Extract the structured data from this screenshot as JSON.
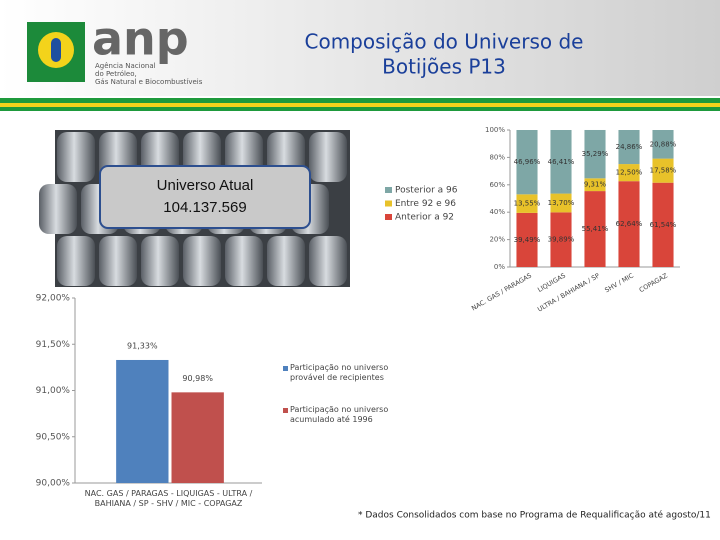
{
  "header": {
    "logo": "anp",
    "logo_subtitle": [
      "Agência Nacional",
      "do Petróleo,",
      "Gás Natural e Biocombustíveis"
    ],
    "title": [
      "Composição do Universo de",
      "Botijões P13"
    ]
  },
  "callout": [
    "Universo Atual",
    "104.137.569"
  ],
  "footnote": "* Dados Consolidados com base no Programa de Requalificação até agosto/11",
  "chart_data": [
    {
      "type": "bar",
      "stacked": true,
      "categories": [
        "NAC. GAS / PARAGAS",
        "LIQUIGAS",
        "ULTRA / BAHIANA / SP",
        "SHV / MIC",
        "COPAGAZ"
      ],
      "series": [
        {
          "name": "Anterior a 92",
          "color": "#d9453a",
          "values": [
            39.49,
            39.89,
            55.41,
            62.64,
            61.54
          ],
          "value_labels": [
            "39,49%",
            "39,89%",
            "55,41%",
            "62,64%",
            "61,54%"
          ]
        },
        {
          "name": "Entre 92 e 96",
          "color": "#e8c22a",
          "values": [
            13.55,
            13.7,
            9.31,
            12.5,
            17.58
          ],
          "value_labels": [
            "13,55%",
            "13,70%",
            "9,31%",
            "12,50%",
            "17,58%"
          ]
        },
        {
          "name": "Posterior a 96",
          "color": "#7ea7a6",
          "values": [
            46.96,
            46.41,
            35.29,
            24.86,
            20.88
          ],
          "value_labels": [
            "46,96%",
            "46,41%",
            "35,29%",
            "24,86%",
            "20,88%"
          ]
        }
      ],
      "ylim": [
        0,
        100
      ],
      "yticks": [
        {
          "value": 0,
          "label": "0%"
        },
        {
          "value": 20,
          "label": "20%"
        },
        {
          "value": 40,
          "label": "40%"
        },
        {
          "value": 60,
          "label": "60%"
        },
        {
          "value": 80,
          "label": "80%"
        },
        {
          "value": 100,
          "label": "100%"
        }
      ],
      "legend": "left"
    },
    {
      "type": "bar",
      "stacked": false,
      "categories": [
        "NAC. GAS / PARAGAS - LIQUIGAS - ULTRA / BAHIANA / SP - SHV / MIC - COPAGAZ"
      ],
      "series": [
        {
          "name": "Participação no universo provável de recipientes",
          "color": "#4f81bd",
          "values": [
            91.33
          ],
          "value_labels": [
            "91,33%"
          ]
        },
        {
          "name": "Participação no universo acumulado até 1996",
          "color": "#c0504d",
          "values": [
            90.98
          ],
          "value_labels": [
            "90,98%"
          ]
        }
      ],
      "ylim": [
        90,
        92
      ],
      "yticks": [
        {
          "value": 90,
          "label": "90,00%"
        },
        {
          "value": 90.5,
          "label": "90,50%"
        },
        {
          "value": 91,
          "label": "91,00%"
        },
        {
          "value": 91.5,
          "label": "91,50%"
        },
        {
          "value": 92,
          "label": "92,00%"
        }
      ],
      "legend": "right"
    }
  ]
}
